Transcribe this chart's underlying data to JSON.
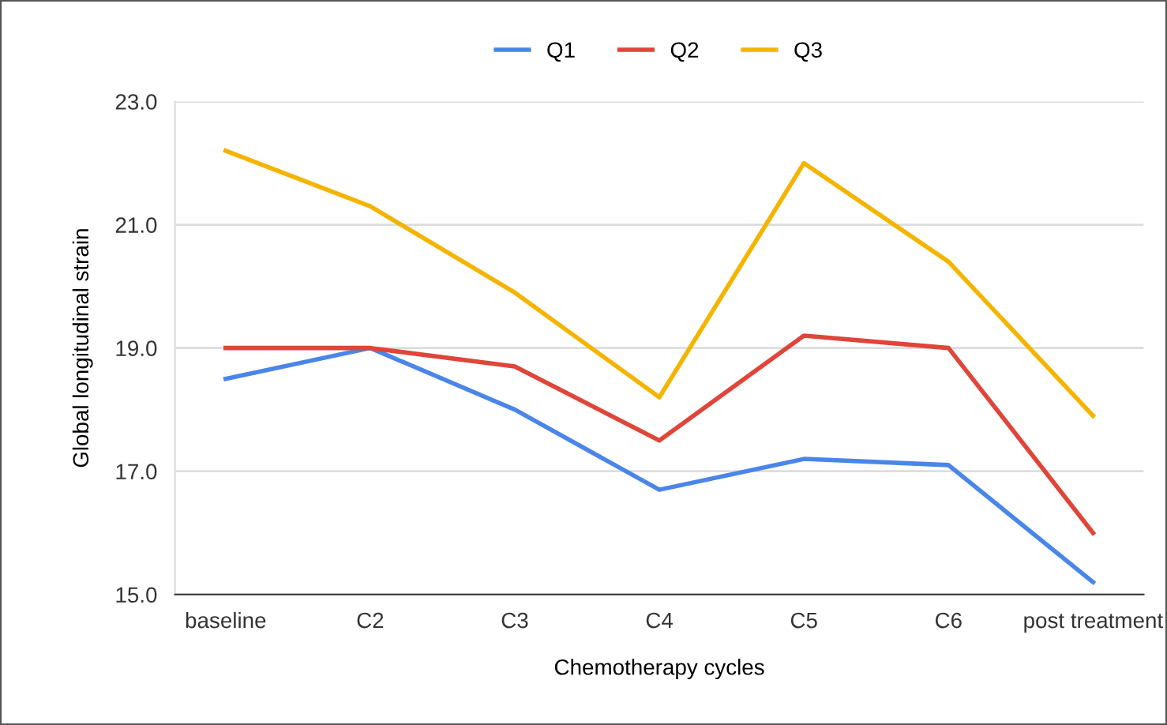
{
  "chart_data": {
    "type": "line",
    "xlabel": "Chemotherapy cycles",
    "ylabel": "Global longitudinal strain",
    "categories": [
      "baseline",
      "C2",
      "C3",
      "C4",
      "C5",
      "C6",
      "post treatment"
    ],
    "series": [
      {
        "name": "Q1",
        "color": "#4a86e8",
        "values": [
          18.5,
          19.0,
          18.0,
          16.7,
          17.2,
          17.1,
          15.2
        ]
      },
      {
        "name": "Q2",
        "color": "#e0453a",
        "values": [
          19.0,
          19.0,
          18.7,
          17.5,
          19.2,
          19.0,
          16.0
        ]
      },
      {
        "name": "Q3",
        "color": "#f4b400",
        "values": [
          22.2,
          21.3,
          19.9,
          18.2,
          22.0,
          20.4,
          17.9
        ]
      }
    ],
    "ylim": [
      15,
      23
    ],
    "yticks": [
      {
        "value": 15,
        "label": "15.0"
      },
      {
        "value": 17,
        "label": "17.0"
      },
      {
        "value": 19,
        "label": "19.0"
      },
      {
        "value": 21,
        "label": "21.0"
      },
      {
        "value": 23,
        "label": "23.0"
      }
    ],
    "grid": "y",
    "legend": "top",
    "marker": "none",
    "line_style": "solid"
  }
}
